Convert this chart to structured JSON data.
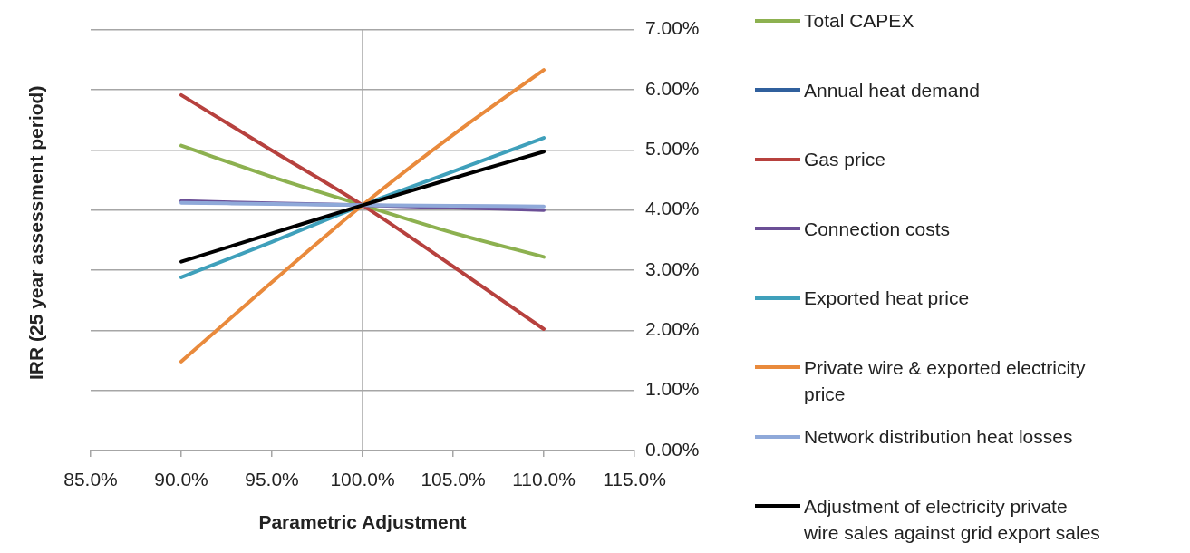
{
  "chart_data": {
    "type": "line",
    "xlabel": "Parametric Adjustment",
    "ylabel": "IRR (25 year assessment period)",
    "x": [
      90,
      95,
      100,
      105,
      110
    ],
    "series": [
      {
        "name": "Total CAPEX",
        "color": "#8db150",
        "values": [
          5.07,
          4.55,
          4.08,
          3.62,
          3.22
        ]
      },
      {
        "name": "Annual heat demand",
        "color": "#30609d",
        "values": [
          null,
          null,
          null,
          null,
          null
        ]
      },
      {
        "name": "Gas price",
        "color": "#b7413e",
        "values": [
          5.91,
          4.99,
          4.08,
          3.06,
          2.02
        ]
      },
      {
        "name": "Connection costs",
        "color": "#6b4f96",
        "values": [
          4.15,
          4.11,
          4.08,
          4.04,
          4.0
        ]
      },
      {
        "name": "Exported heat price",
        "color": "#3fa0bb",
        "values": [
          2.88,
          3.47,
          4.08,
          4.64,
          5.2
        ]
      },
      {
        "name": "Private wire & exported electricity price",
        "color": "#e98a3c",
        "values": [
          1.48,
          2.8,
          4.08,
          5.25,
          6.33
        ]
      },
      {
        "name": "Network distribution heat losses",
        "color": "#8fa9d9",
        "values": [
          4.12,
          4.1,
          4.08,
          4.07,
          4.06
        ]
      },
      {
        "name": "Adjustment of electricity private wire sales against grid export sales",
        "color": "#000000",
        "values": [
          3.14,
          3.61,
          4.08,
          4.53,
          4.97
        ]
      }
    ],
    "xlim": [
      85,
      115
    ],
    "xticks": [
      {
        "value": 85,
        "label": "85.0%"
      },
      {
        "value": 90,
        "label": "90.0%"
      },
      {
        "value": 95,
        "label": "95.0%"
      },
      {
        "value": 100,
        "label": "100.0%"
      },
      {
        "value": 105,
        "label": "105.0%"
      },
      {
        "value": 110,
        "label": "110.0%"
      },
      {
        "value": 115,
        "label": "115.0%"
      }
    ],
    "ylim": [
      0,
      7
    ],
    "yticks": [
      {
        "value": 0,
        "label": "0.00%"
      },
      {
        "value": 1,
        "label": "1.00%"
      },
      {
        "value": 2,
        "label": "2.00%"
      },
      {
        "value": 3,
        "label": "3.00%"
      },
      {
        "value": 4,
        "label": "4.00%"
      },
      {
        "value": 5,
        "label": "5.00%"
      },
      {
        "value": 6,
        "label": "6.00%"
      },
      {
        "value": 7,
        "label": "7.00%"
      }
    ],
    "grid": "y",
    "legend": "right",
    "marker": "none",
    "line_style": "solid",
    "ref_lines": [
      {
        "axis": "x",
        "value": 100,
        "color": "#a6a6a6"
      }
    ]
  }
}
